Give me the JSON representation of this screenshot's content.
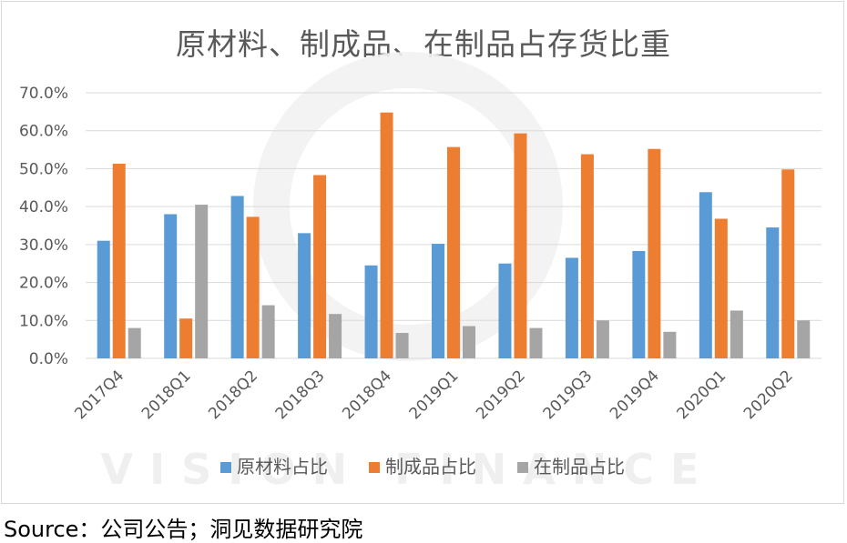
{
  "chart_data": {
    "type": "bar",
    "title": "原材料、制成品、在制品占存货比重",
    "categories": [
      "2017Q4",
      "2018Q1",
      "2018Q2",
      "2018Q3",
      "2018Q4",
      "2019Q1",
      "2019Q2",
      "2019Q3",
      "2019Q4",
      "2020Q1",
      "2020Q2"
    ],
    "series": [
      {
        "name": "原材料占比",
        "color": "#5b9bd5",
        "values": [
          31.0,
          38.0,
          42.8,
          33.0,
          24.5,
          30.2,
          25.0,
          26.5,
          28.3,
          43.8,
          34.5
        ]
      },
      {
        "name": "制成品占比",
        "color": "#ed7d31",
        "values": [
          51.3,
          10.5,
          37.3,
          48.3,
          64.8,
          55.7,
          59.3,
          53.8,
          55.2,
          36.8,
          49.8
        ]
      },
      {
        "name": "在制品占比",
        "color": "#a5a5a5",
        "values": [
          8.0,
          40.5,
          14.0,
          11.7,
          6.7,
          8.5,
          8.0,
          10.0,
          7.0,
          12.6,
          10.0
        ]
      }
    ],
    "ylim": [
      0,
      70
    ],
    "yticks": [
      "0.0%",
      "10.0%",
      "20.0%",
      "30.0%",
      "40.0%",
      "50.0%",
      "60.0%",
      "70.0%"
    ],
    "grid": true,
    "legend": "bottom",
    "watermark": "VISION FINANCE"
  },
  "source": "Source：公司公告；洞见数据研究院"
}
